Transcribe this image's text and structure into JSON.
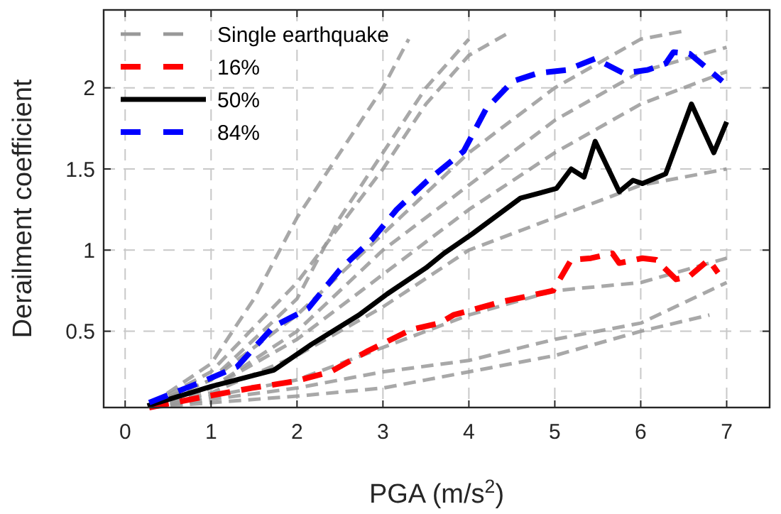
{
  "chart_data": {
    "type": "line",
    "xlabel": "PGA (m/s$^{2}$)",
    "ylabel": "Derailment coefficient",
    "xlim": [
      -0.25,
      7.5
    ],
    "ylim": [
      0.03,
      2.48
    ],
    "xticks": [
      0,
      1,
      2,
      3,
      4,
      5,
      6,
      7
    ],
    "yticks": [
      0.5,
      1,
      1.5,
      2
    ],
    "grid": true,
    "legend": "top left",
    "series": [
      {
        "name": "Single earthquake",
        "color": "#999999",
        "line_style": "dashed",
        "x": [
          0.3,
          1,
          1.5,
          2,
          2.5,
          3,
          3.3
        ],
        "values": [
          0.05,
          0.3,
          0.7,
          1.2,
          1.6,
          2.0,
          2.3
        ]
      },
      {
        "color": "#999999",
        "line_style": "dashed",
        "x": [
          0.3,
          1,
          2,
          3,
          3.5,
          4,
          4.5
        ],
        "values": [
          0.05,
          0.25,
          0.8,
          1.5,
          1.9,
          2.2,
          2.35
        ]
      },
      {
        "color": "#999999",
        "line_style": "dashed",
        "x": [
          0.3,
          1,
          2,
          3,
          4,
          5,
          6,
          6.5
        ],
        "values": [
          0.05,
          0.2,
          0.6,
          1.1,
          1.6,
          2.0,
          2.3,
          2.35
        ]
      },
      {
        "color": "#999999",
        "line_style": "dashed",
        "x": [
          0.3,
          1,
          2,
          3,
          4,
          5,
          6,
          7
        ],
        "values": [
          0.04,
          0.15,
          0.45,
          0.85,
          1.25,
          1.6,
          1.9,
          2.1
        ]
      },
      {
        "color": "#999999",
        "line_style": "dashed",
        "x": [
          0.3,
          1,
          2,
          3,
          4,
          5,
          6,
          7
        ],
        "values": [
          0.04,
          0.12,
          0.35,
          0.65,
          1.0,
          1.2,
          1.4,
          1.5
        ]
      },
      {
        "color": "#999999",
        "line_style": "dashed",
        "x": [
          0.3,
          1,
          2,
          3,
          4,
          5,
          6,
          7
        ],
        "values": [
          0.03,
          0.1,
          0.2,
          0.4,
          0.6,
          0.75,
          0.8,
          0.95
        ]
      },
      {
        "color": "#999999",
        "line_style": "dashed",
        "x": [
          0.3,
          1,
          2,
          3,
          4,
          5,
          6,
          7
        ],
        "values": [
          0.03,
          0.08,
          0.15,
          0.25,
          0.32,
          0.45,
          0.55,
          0.8
        ]
      },
      {
        "color": "#999999",
        "line_style": "dashed",
        "x": [
          0.3,
          1,
          2,
          3,
          3.5,
          4,
          5,
          6,
          6.8
        ],
        "values": [
          0.03,
          0.06,
          0.1,
          0.15,
          0.2,
          0.25,
          0.35,
          0.5,
          0.6
        ]
      },
      {
        "color": "#999999",
        "line_style": "dashed",
        "x": [
          0.3,
          1,
          2,
          2.5,
          3,
          3.5,
          4
        ],
        "values": [
          0.05,
          0.2,
          0.7,
          1.2,
          1.6,
          2.0,
          2.3
        ]
      },
      {
        "color": "#999999",
        "line_style": "dashed",
        "x": [
          0.3,
          1,
          2,
          3,
          4,
          5,
          6,
          7
        ],
        "values": [
          0.04,
          0.15,
          0.5,
          1.0,
          1.4,
          1.8,
          2.1,
          2.25
        ]
      },
      {
        "name": "16%",
        "color": "#ff0000",
        "line_style": "dashed",
        "x": [
          0.28,
          0.86,
          1.47,
          1.96,
          2.39,
          2.83,
          3.33,
          3.66,
          3.82,
          4.37,
          4.98,
          5.19,
          5.42,
          5.67,
          5.75,
          6.02,
          6.18,
          6.41,
          6.57,
          6.79,
          6.9
        ],
        "values": [
          0.03,
          0.09,
          0.15,
          0.19,
          0.25,
          0.38,
          0.51,
          0.55,
          0.6,
          0.68,
          0.75,
          0.94,
          0.95,
          0.98,
          0.92,
          0.95,
          0.94,
          0.82,
          0.84,
          0.94,
          0.86
        ]
      },
      {
        "name": "50%",
        "color": "#000000",
        "line_style": "solid",
        "x": [
          0.26,
          1.0,
          1.73,
          2.17,
          2.72,
          3.05,
          3.5,
          3.71,
          4.04,
          4.6,
          5.02,
          5.19,
          5.34,
          5.47,
          5.75,
          5.91,
          6.02,
          6.29,
          6.59,
          6.85,
          7.0
        ],
        "values": [
          0.04,
          0.16,
          0.26,
          0.42,
          0.6,
          0.73,
          0.89,
          0.98,
          1.1,
          1.32,
          1.38,
          1.5,
          1.45,
          1.67,
          1.36,
          1.43,
          1.41,
          1.47,
          1.9,
          1.6,
          1.79
        ]
      },
      {
        "name": "84%",
        "color": "#0000ff",
        "line_style": "dashed",
        "x": [
          0.28,
          0.9,
          1.3,
          1.73,
          2.13,
          2.5,
          2.88,
          3.16,
          3.5,
          3.94,
          4.2,
          4.51,
          4.8,
          5.14,
          5.47,
          5.8,
          6.08,
          6.29,
          6.38,
          6.57,
          6.75,
          6.95
        ],
        "values": [
          0.06,
          0.19,
          0.28,
          0.53,
          0.64,
          0.88,
          1.07,
          1.25,
          1.42,
          1.61,
          1.87,
          2.04,
          2.09,
          2.11,
          2.18,
          2.09,
          2.11,
          2.15,
          2.22,
          2.21,
          2.13,
          2.04
        ]
      }
    ]
  }
}
